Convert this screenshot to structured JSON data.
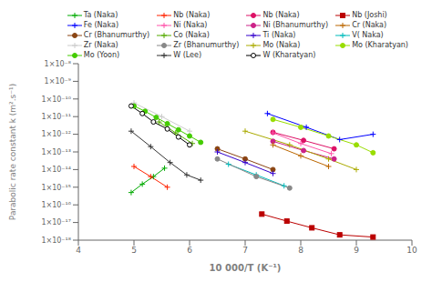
{
  "chart_data": {
    "type": "line",
    "xlabel": "10 000/T (K⁻¹)",
    "ylabel": "Parabolic rate constant k (m².s⁻¹)",
    "log": "y",
    "grid": false,
    "legend": "top",
    "xlim": [
      4,
      10
    ],
    "xticks": [
      4,
      5,
      6,
      7,
      8,
      9,
      10
    ],
    "ylim": [
      1e-18,
      1e-08
    ],
    "yticks": [
      {
        "value": 1e-18,
        "label": "1×10⁻¹⁸"
      },
      {
        "value": 1e-17,
        "label": "1×10⁻¹⁷"
      },
      {
        "value": 1e-16,
        "label": "1×10⁻¹⁶"
      },
      {
        "value": 1e-15,
        "label": "1×10⁻¹⁵"
      },
      {
        "value": 1e-14,
        "label": "1×10⁻¹⁴"
      },
      {
        "value": 1e-13,
        "label": "1×10⁻¹³"
      },
      {
        "value": 1e-12,
        "label": "1×10⁻¹²"
      },
      {
        "value": 1e-11,
        "label": "1×10⁻¹¹"
      },
      {
        "value": 1e-10,
        "label": "1×10⁻¹⁰"
      },
      {
        "value": 1e-09,
        "label": "1×10⁻⁹"
      },
      {
        "value": 1e-08,
        "label": "1×10⁻⁸"
      }
    ],
    "series": [
      {
        "name": "Ta (Naka)",
        "color": "#00aa00",
        "marker": "plus",
        "x": [
          4.95,
          5.15,
          5.35,
          5.55
        ],
        "values": [
          5e-16,
          1.5e-15,
          4e-15,
          1.2e-14
        ]
      },
      {
        "name": "Nb (Naka)",
        "color": "#ff2200",
        "marker": "plus",
        "x": [
          5.0,
          5.3,
          5.6
        ],
        "values": [
          1.5e-14,
          4e-15,
          1e-15
        ]
      },
      {
        "name": "Nb (Naka)",
        "color": "#dd1166",
        "marker": "circle",
        "x": [
          7.5,
          8.05,
          8.6
        ],
        "values": [
          1.3e-12,
          4.5e-13,
          1.5e-13
        ]
      },
      {
        "name": "Nb (Joshi)",
        "color": "#bb0000",
        "marker": "square",
        "x": [
          7.3,
          7.75,
          8.2,
          8.7,
          9.3
        ],
        "values": [
          3e-17,
          1.2e-17,
          5e-18,
          2e-18,
          1.5e-18
        ]
      },
      {
        "name": "Fe (Naka)",
        "color": "#0000ff",
        "marker": "plus",
        "x": [
          7.4,
          8.1,
          8.7,
          9.3
        ],
        "values": [
          1.5e-11,
          2.5e-12,
          5e-13,
          1e-12
        ]
      },
      {
        "name": "Ni (Naka)",
        "color": "#ff55aa",
        "marker": "plus",
        "x": [
          7.5,
          8.0,
          8.55
        ],
        "values": [
          1.2e-12,
          3e-13,
          8e-14
        ]
      },
      {
        "name": "Ni (Bhanumurthy)",
        "color": "#cc2288",
        "marker": "circle",
        "x": [
          7.5,
          8.05,
          8.6
        ],
        "values": [
          4e-13,
          1.2e-13,
          4e-14
        ]
      },
      {
        "name": "Cr (Naka)",
        "color": "#bb6600",
        "marker": "plus",
        "x": [
          7.5,
          8.0,
          8.5
        ],
        "values": [
          2.5e-13,
          6e-14,
          1.5e-14
        ]
      },
      {
        "name": "Cr (Bhanumurthy)",
        "color": "#8B4513",
        "marker": "circle",
        "x": [
          6.5,
          7.0,
          7.5
        ],
        "values": [
          1.5e-13,
          4e-14,
          1e-14
        ]
      },
      {
        "name": "Co (Naka)",
        "color": "#55aa00",
        "marker": "plus",
        "x": [
          5.45,
          5.75,
          6.05
        ],
        "values": [
          5e-12,
          1.2e-12,
          3e-13
        ]
      },
      {
        "name": "Ti (Naka)",
        "color": "#3300cc",
        "marker": "plus",
        "x": [
          6.5,
          7.0,
          7.5
        ],
        "values": [
          1e-13,
          2.5e-14,
          6e-15
        ]
      },
      {
        "name": "V( Naka)",
        "color": "#00bbbb",
        "marker": "plus",
        "x": [
          6.7,
          7.2,
          7.7
        ],
        "values": [
          2e-14,
          5e-15,
          1.2e-15
        ]
      },
      {
        "name": "Zr (Naka)",
        "color": "#cccccc",
        "marker": "plus",
        "x": [
          5.0,
          5.5,
          6.0
        ],
        "values": [
          6e-11,
          1e-11,
          1.5e-12
        ]
      },
      {
        "name": "Zr (Bhanumurthy)",
        "color": "#888888",
        "marker": "circle",
        "x": [
          6.5,
          7.2,
          7.8
        ],
        "values": [
          4e-14,
          4e-15,
          9e-16
        ]
      },
      {
        "name": "Mo (Naka)",
        "color": "#aaaa00",
        "marker": "plus",
        "x": [
          7.0,
          7.8,
          8.5,
          9.0
        ],
        "values": [
          1.5e-12,
          2.5e-13,
          4e-14,
          1e-14
        ]
      },
      {
        "name": "Mo (Kharatyan)",
        "color": "#99dd00",
        "marker": "circle",
        "x": [
          7.5,
          8.0,
          8.5,
          9.0,
          9.3
        ],
        "values": [
          7e-12,
          2.5e-12,
          8e-13,
          2.5e-13,
          9e-14
        ]
      },
      {
        "name": "Mo (Yoon)",
        "color": "#44cc00",
        "marker": "circle",
        "x": [
          5.0,
          5.2,
          5.4,
          5.6,
          5.8,
          6.0,
          6.2
        ],
        "values": [
          4e-11,
          2e-11,
          9e-12,
          4e-12,
          1.8e-12,
          8e-13,
          3.5e-13
        ]
      },
      {
        "name": "W (Lee)",
        "color": "#333333",
        "marker": "plus",
        "x": [
          4.95,
          5.3,
          5.65,
          5.95,
          6.2
        ],
        "values": [
          1.5e-12,
          2e-13,
          2.5e-14,
          5e-15,
          2.5e-15
        ]
      },
      {
        "name": "W (Kharatyan)",
        "color": "#000000",
        "marker": "open_circle",
        "x": [
          4.95,
          5.15,
          5.35,
          5.6,
          5.8,
          6.0
        ],
        "values": [
          4e-11,
          1.5e-11,
          5e-12,
          2e-12,
          7e-13,
          2.5e-13
        ]
      }
    ]
  }
}
